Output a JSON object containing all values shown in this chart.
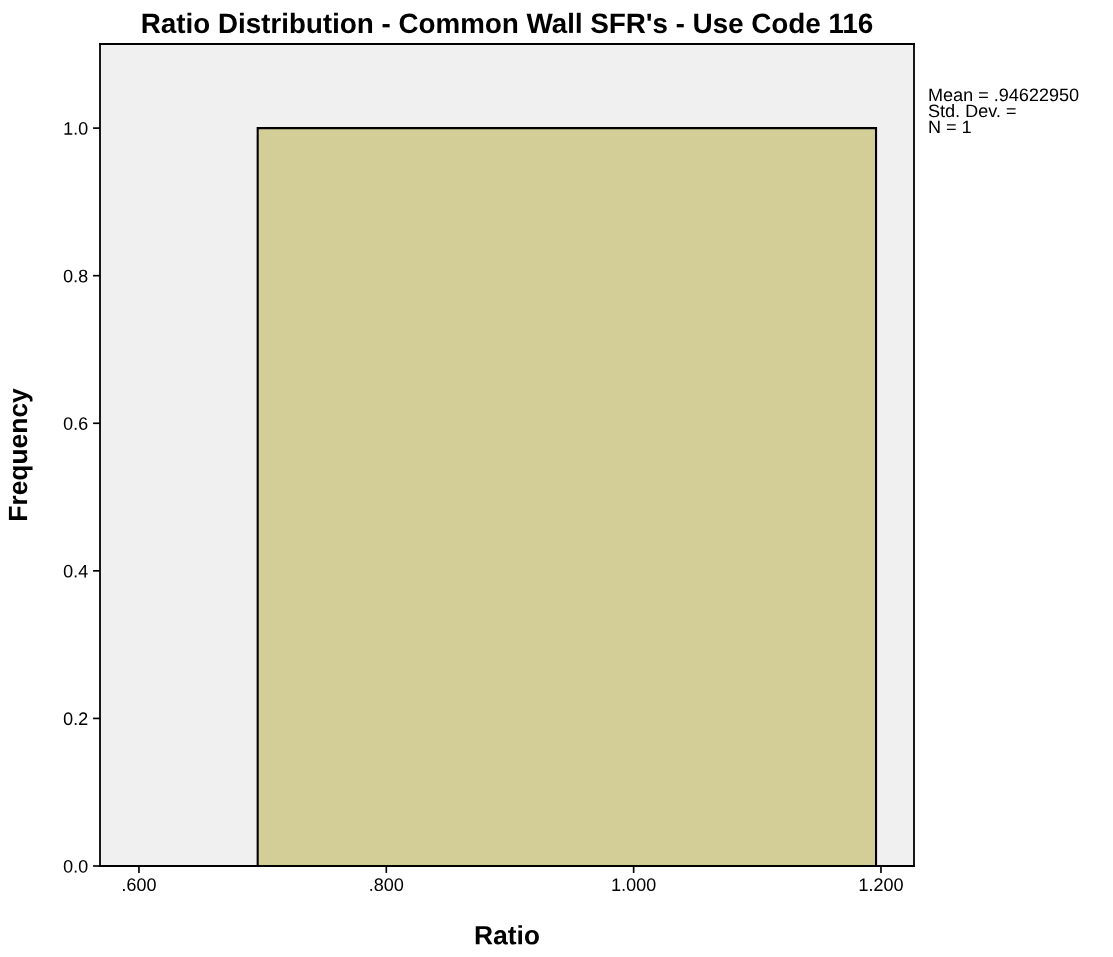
{
  "chart_data": {
    "type": "histogram",
    "title": "Ratio Distribution - Common Wall SFR's - Use Code 116",
    "xlabel": "Ratio",
    "ylabel": "Frequency",
    "bins": [
      0.696,
      1.196
    ],
    "values": [
      1
    ],
    "color": "#d3ce98",
    "xlim": [
      0.5685,
      1.2267
    ],
    "xticks": [
      {
        "value": 0.6,
        "label": ".600"
      },
      {
        "value": 0.8,
        "label": ".800"
      },
      {
        "value": 1.0,
        "label": "1.000"
      },
      {
        "value": 1.2,
        "label": "1.200"
      }
    ],
    "ylim": [
      0,
      1.114
    ],
    "yticks": [
      {
        "value": 0,
        "label": "0.0"
      },
      {
        "value": 0.2,
        "label": "0.2"
      },
      {
        "value": 0.4,
        "label": "0.4"
      },
      {
        "value": 0.6,
        "label": "0.6"
      },
      {
        "value": 0.8,
        "label": "0.8"
      },
      {
        "value": 1.0,
        "label": "1.0"
      }
    ],
    "grid": false,
    "annotations": [
      "Mean = .94622950",
      "Std. Dev. =",
      "N = 1"
    ]
  }
}
